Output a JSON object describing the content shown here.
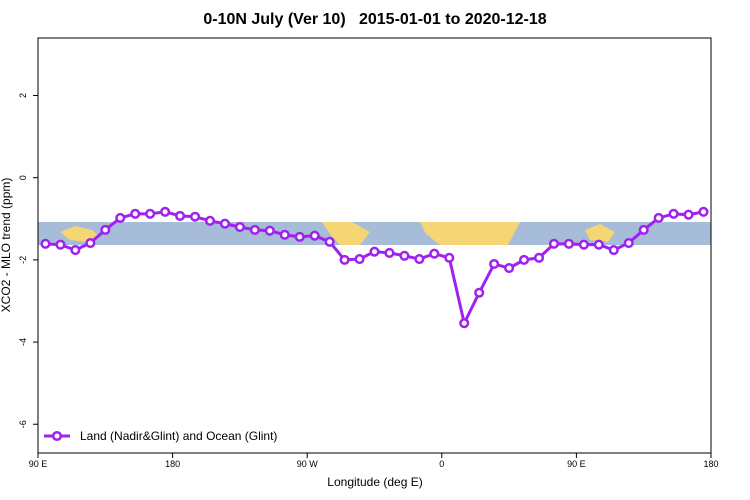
{
  "chart_data": {
    "type": "line",
    "title": "0-10N July (Ver 10)   2015-01-01 to 2020-12-18",
    "x_label": "Longitude (deg E)",
    "y_label": "XCO2 - MLO trend (ppm)",
    "x": [
      95,
      105,
      115,
      125,
      135,
      145,
      155,
      165,
      175,
      185,
      195,
      205,
      215,
      225,
      235,
      245,
      255,
      265,
      275,
      285,
      295,
      305,
      315,
      325,
      335,
      345,
      355,
      365,
      375,
      385,
      395,
      405,
      415,
      425,
      435,
      445,
      455,
      465,
      475,
      485,
      495,
      505,
      515,
      525,
      535
    ],
    "series": [
      {
        "name": "Land (Nadir&Glint) and Ocean (Glint)",
        "color": "#a020f0",
        "values": [
          -1.61,
          -1.63,
          -1.76,
          -1.59,
          -1.27,
          -0.98,
          -0.88,
          -0.88,
          -0.83,
          -0.93,
          -0.95,
          -1.05,
          -1.12,
          -1.2,
          -1.27,
          -1.29,
          -1.39,
          -1.44,
          -1.41,
          -1.56,
          -2.0,
          -1.98,
          -1.8,
          -1.83,
          -1.9,
          -1.98,
          -1.85,
          -1.95,
          -3.54,
          -2.8,
          -2.1,
          -2.2,
          -2.0,
          -1.95,
          -1.61,
          -1.61,
          -1.63,
          -1.63,
          -1.76,
          -1.59,
          -1.27,
          -0.98,
          -0.88,
          -0.9,
          -0.83
        ]
      }
    ],
    "xlim": [
      90,
      540
    ],
    "xticks": [
      {
        "value": 90,
        "label": "90 E"
      },
      180,
      {
        "value": 270,
        "label": "90 W"
      },
      {
        "value": 360,
        "label": "0"
      },
      {
        "value": 450,
        "label": "90 E"
      },
      {
        "value": 540,
        "label": "180"
      }
    ],
    "ylim": [
      -6.7,
      3.4
    ],
    "yticks": [
      2,
      0,
      -2,
      -4,
      -6
    ],
    "legend": "bottom-left"
  }
}
